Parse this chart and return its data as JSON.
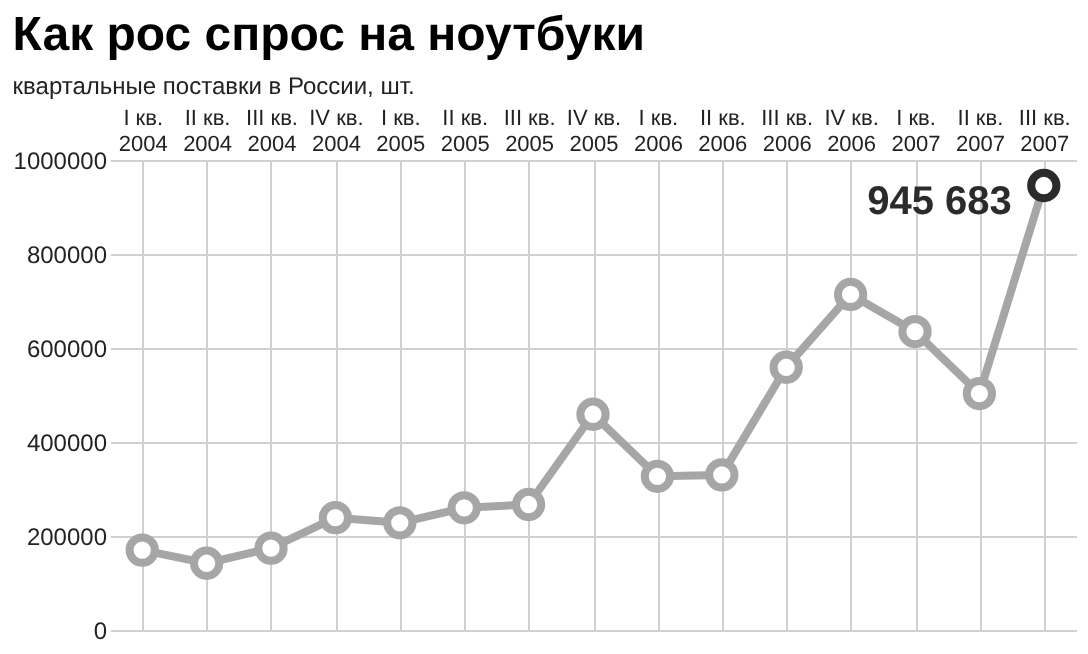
{
  "chart_data": {
    "type": "line",
    "title": "Как рос спрос на ноутбуки",
    "subtitle": "квартальные поставки в России, шт.",
    "categories": [
      "I кв. 2004",
      "II кв. 2004",
      "III кв. 2004",
      "IV кв. 2004",
      "I кв. 2005",
      "II кв. 2005",
      "III кв. 2005",
      "IV кв. 2005",
      "I кв. 2006",
      "II кв. 2006",
      "III кв. 2006",
      "IV кв. 2006",
      "I кв. 2007",
      "II кв. 2007",
      "III кв. 2007"
    ],
    "series": [
      {
        "color": "#a6a6a6",
        "colors": [
          "#a6a6a6",
          "#a6a6a6",
          "#a6a6a6",
          "#a6a6a6",
          "#a6a6a6",
          "#a6a6a6",
          "#a6a6a6",
          "#a6a6a6",
          "#a6a6a6",
          "#a6a6a6",
          "#a6a6a6",
          "#a6a6a6",
          "#a6a6a6",
          "#a6a6a6",
          "#2b2b2b"
        ],
        "values": [
          170000,
          142000,
          174000,
          239000,
          228000,
          260000,
          267000,
          459000,
          327000,
          330000,
          559000,
          714000,
          635000,
          503000,
          945683
        ],
        "value_labels": [
          null,
          null,
          null,
          null,
          null,
          null,
          null,
          null,
          null,
          null,
          null,
          null,
          null,
          null,
          "945 683"
        ]
      }
    ],
    "ylim": [
      0,
      1000000
    ],
    "yticks": [
      0,
      200000,
      400000,
      600000,
      800000,
      1000000
    ],
    "grid": true,
    "marker": "circle",
    "line_style": "solid"
  }
}
